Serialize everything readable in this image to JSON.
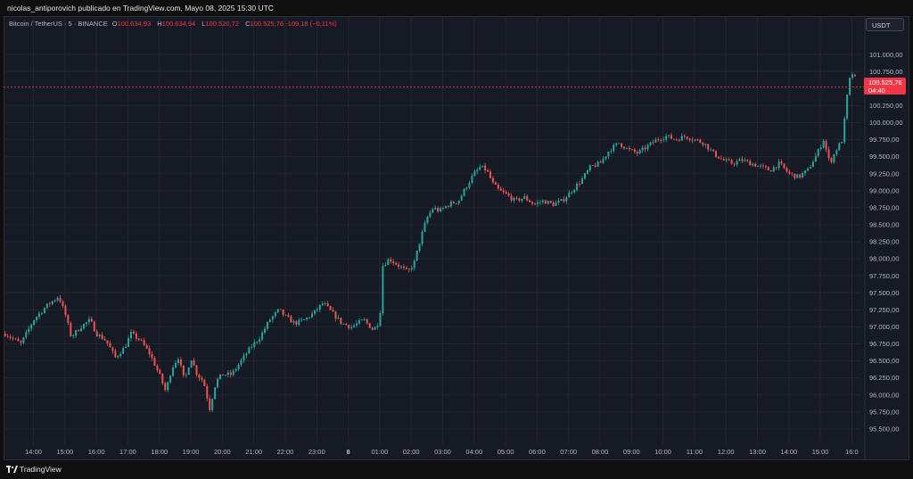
{
  "header": {
    "publisher_line": "nicolas_antiporovich publicado en TradingView.com, Mayo 08, 2025 15:30 UTC"
  },
  "legend": {
    "symbol": "Bitcoin / TetherUS · 5 · BINANCE",
    "open_label": "O",
    "open_value": "100.634,93",
    "high_label": "H",
    "high_value": "100.634,94",
    "low_label": "L",
    "low_value": "100.520,72",
    "close_label": "C",
    "close_value": "100.525,76",
    "change_value": "-109,18 (−0,11%)"
  },
  "currency_button": "USDT",
  "price_tag": {
    "price": "100.525,76",
    "countdown": "04:40"
  },
  "footer": {
    "brand": "TradingView"
  },
  "colors": {
    "up": "#26a69a",
    "down": "#ef5350",
    "background": "#161a25",
    "grid": "#232632",
    "axis_text": "#b2b5be"
  },
  "chart_data": {
    "type": "candlestick",
    "timeframe": "5",
    "yaxis_labels": [
      "101.000,00",
      "100.750,00",
      "100.500,00",
      "100.250,00",
      "100.000,00",
      "99.750,00",
      "99.500,00",
      "99.250,00",
      "99.000,00",
      "98.750,00",
      "98.500,00",
      "98.250,00",
      "98.000,00",
      "97.750,00",
      "97.500,00",
      "97.250,00",
      "97.000,00",
      "96.750,00",
      "96.500,00",
      "96.250,00",
      "96.000,00",
      "95.750,00",
      "95.500,00"
    ],
    "yaxis_values": [
      101000,
      100750,
      100500,
      100250,
      100000,
      99750,
      99500,
      99250,
      99000,
      98750,
      98500,
      98250,
      98000,
      97750,
      97500,
      97250,
      97000,
      96750,
      96500,
      96250,
      96000,
      95750,
      95500
    ],
    "ylim": [
      95380,
      101330
    ],
    "xaxis_labels": [
      "14:00",
      "15:00",
      "16:00",
      "17:00",
      "18:00",
      "19:00",
      "20:00",
      "21:00",
      "22:00",
      "23:00",
      "8",
      "01:00",
      "02:00",
      "03:00",
      "04:00",
      "05:00",
      "06:00",
      "07:00",
      "08:00",
      "09:00",
      "10:00",
      "11:00",
      "12:00",
      "13:00",
      "14:00",
      "15:00",
      "16:0"
    ],
    "xaxis_hours": [
      14,
      15,
      16,
      17,
      18,
      19,
      20,
      21,
      22,
      23,
      24,
      25,
      26,
      27,
      28,
      29,
      30,
      31,
      32,
      33,
      34,
      35,
      36,
      37,
      38,
      39,
      40
    ],
    "xlim": [
      13.05,
      40.3
    ],
    "approx_close_path": [
      [
        13.1,
        96.9
      ],
      [
        13.6,
        96.75
      ],
      [
        14.0,
        97.1
      ],
      [
        14.4,
        97.3
      ],
      [
        14.8,
        97.45
      ],
      [
        15.0,
        97.2
      ],
      [
        15.2,
        96.85
      ],
      [
        15.5,
        97.0
      ],
      [
        15.8,
        97.1
      ],
      [
        16.0,
        96.9
      ],
      [
        16.3,
        96.8
      ],
      [
        16.6,
        96.55
      ],
      [
        16.9,
        96.7
      ],
      [
        17.1,
        96.9
      ],
      [
        17.4,
        96.8
      ],
      [
        17.7,
        96.6
      ],
      [
        18.0,
        96.3
      ],
      [
        18.2,
        96.05
      ],
      [
        18.4,
        96.4
      ],
      [
        18.6,
        96.55
      ],
      [
        18.8,
        96.2
      ],
      [
        19.0,
        96.55
      ],
      [
        19.2,
        96.3
      ],
      [
        19.4,
        96.2
      ],
      [
        19.6,
        95.8
      ],
      [
        19.8,
        96.2
      ],
      [
        20.0,
        96.3
      ],
      [
        20.3,
        96.3
      ],
      [
        20.6,
        96.5
      ],
      [
        20.9,
        96.7
      ],
      [
        21.2,
        96.85
      ],
      [
        21.5,
        97.1
      ],
      [
        21.8,
        97.25
      ],
      [
        22.0,
        97.15
      ],
      [
        22.3,
        97.05
      ],
      [
        22.6,
        97.1
      ],
      [
        22.9,
        97.2
      ],
      [
        23.2,
        97.35
      ],
      [
        23.5,
        97.2
      ],
      [
        23.8,
        97.05
      ],
      [
        24.1,
        97.0
      ],
      [
        24.5,
        97.1
      ],
      [
        24.8,
        96.95
      ],
      [
        25.0,
        97.1
      ],
      [
        25.1,
        97.9
      ],
      [
        25.3,
        98.0
      ],
      [
        25.6,
        97.9
      ],
      [
        25.9,
        97.8
      ],
      [
        26.1,
        97.95
      ],
      [
        26.3,
        98.3
      ],
      [
        26.5,
        98.6
      ],
      [
        26.7,
        98.75
      ],
      [
        26.9,
        98.7
      ],
      [
        27.2,
        98.8
      ],
      [
        27.5,
        98.85
      ],
      [
        27.8,
        99.1
      ],
      [
        28.0,
        99.25
      ],
      [
        28.2,
        99.35
      ],
      [
        28.4,
        99.3
      ],
      [
        28.6,
        99.1
      ],
      [
        28.8,
        99.0
      ],
      [
        29.0,
        98.95
      ],
      [
        29.3,
        98.85
      ],
      [
        29.6,
        98.9
      ],
      [
        29.9,
        98.8
      ],
      [
        30.2,
        98.85
      ],
      [
        30.5,
        98.8
      ],
      [
        30.8,
        98.85
      ],
      [
        31.1,
        99.0
      ],
      [
        31.4,
        99.15
      ],
      [
        31.7,
        99.35
      ],
      [
        32.0,
        99.4
      ],
      [
        32.3,
        99.6
      ],
      [
        32.6,
        99.7
      ],
      [
        32.9,
        99.6
      ],
      [
        33.2,
        99.55
      ],
      [
        33.5,
        99.65
      ],
      [
        33.8,
        99.75
      ],
      [
        34.1,
        99.8
      ],
      [
        34.4,
        99.75
      ],
      [
        34.7,
        99.8
      ],
      [
        35.0,
        99.75
      ],
      [
        35.3,
        99.7
      ],
      [
        35.6,
        99.55
      ],
      [
        35.9,
        99.45
      ],
      [
        36.2,
        99.4
      ],
      [
        36.5,
        99.45
      ],
      [
        36.8,
        99.4
      ],
      [
        37.1,
        99.35
      ],
      [
        37.4,
        99.3
      ],
      [
        37.7,
        99.4
      ],
      [
        38.0,
        99.25
      ],
      [
        38.3,
        99.2
      ],
      [
        38.6,
        99.3
      ],
      [
        38.9,
        99.55
      ],
      [
        39.1,
        99.75
      ],
      [
        39.3,
        99.4
      ],
      [
        39.5,
        99.6
      ],
      [
        39.7,
        99.75
      ],
      [
        39.9,
        100.6
      ],
      [
        40.05,
        100.75
      ],
      [
        40.15,
        100.55
      ]
    ],
    "last_price": 100525.76,
    "last_price_line_color": "#f23645"
  }
}
